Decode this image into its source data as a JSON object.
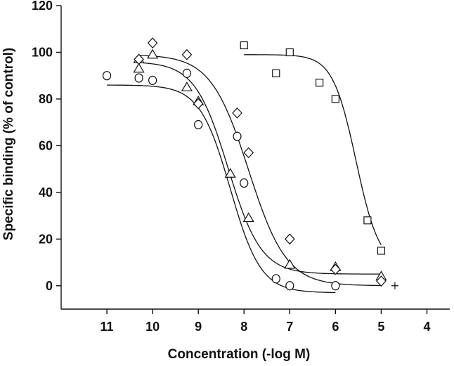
{
  "chart_data": {
    "type": "scatter",
    "title": "",
    "xlabel": "Concentration (-log M)",
    "ylabel": "Specific binding (% of control)",
    "xlim": [
      12,
      3.5
    ],
    "ylim": [
      -10,
      120
    ],
    "x_reversed": true,
    "x_ticks": [
      11,
      10,
      9,
      8,
      7,
      6,
      5,
      4
    ],
    "y_ticks": [
      0,
      20,
      40,
      60,
      80,
      100,
      120
    ],
    "grid": false,
    "legend": "none",
    "series": [
      {
        "marker": "circle",
        "points": [
          [
            11,
            90
          ],
          [
            10.3,
            89
          ],
          [
            10,
            88
          ],
          [
            9.25,
            91
          ],
          [
            9,
            69
          ],
          [
            8.15,
            64
          ],
          [
            8,
            44
          ],
          [
            7.3,
            3
          ],
          [
            7,
            0
          ],
          [
            6,
            0
          ]
        ],
        "curve": {
          "top": 86,
          "bottom": -3,
          "ic50": 8.3,
          "hill": 1.3
        }
      },
      {
        "marker": "triangle",
        "points": [
          [
            10.3,
            97
          ],
          [
            10.3,
            93
          ],
          [
            10,
            99
          ],
          [
            9.25,
            85
          ],
          [
            9,
            79
          ],
          [
            8.3,
            48
          ],
          [
            7.9,
            29
          ],
          [
            7,
            9
          ],
          [
            6,
            8
          ],
          [
            5,
            4
          ]
        ],
        "curve": {
          "top": 96,
          "bottom": 5,
          "ic50": 8.35,
          "hill": 1.2
        }
      },
      {
        "marker": "diamond",
        "points": [
          [
            10.3,
            97
          ],
          [
            10,
            104
          ],
          [
            9.25,
            99
          ],
          [
            9,
            78
          ],
          [
            8.15,
            74
          ],
          [
            7.9,
            57
          ],
          [
            7,
            20
          ],
          [
            6,
            7
          ],
          [
            5,
            2
          ]
        ],
        "curve": {
          "top": 99,
          "bottom": 0,
          "ic50": 7.9,
          "hill": 1.05
        }
      },
      {
        "marker": "square",
        "points": [
          [
            8,
            103
          ],
          [
            7.3,
            91
          ],
          [
            7,
            100
          ],
          [
            6.35,
            87
          ],
          [
            6,
            80
          ],
          [
            5.3,
            28
          ],
          [
            5,
            15
          ]
        ],
        "curve": {
          "top": 99,
          "bottom": 8,
          "ic50": 5.55,
          "hill": 1.7
        }
      },
      {
        "marker": "plus",
        "points": [
          [
            4.7,
            0
          ]
        ]
      }
    ]
  }
}
